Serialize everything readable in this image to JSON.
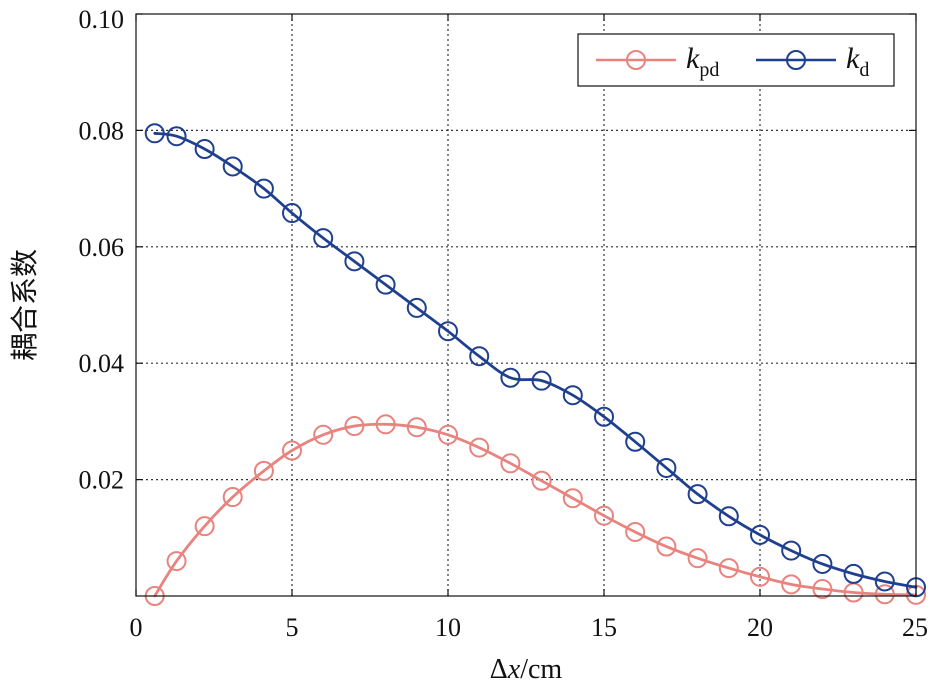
{
  "chart_data": {
    "type": "line",
    "title": "",
    "xlabel_parts": [
      "Δ",
      "x",
      "/cm"
    ],
    "ylabel": "耦合系数",
    "xlim": [
      0,
      25
    ],
    "ylim": [
      0,
      0.1
    ],
    "xticks": [
      0,
      5,
      10,
      15,
      20,
      25
    ],
    "xtick_labels": [
      "0",
      "5",
      "10",
      "15",
      "20",
      "25"
    ],
    "yticks": [
      0.02,
      0.04,
      0.06,
      0.08,
      0.1
    ],
    "ytick_labels": [
      "0.02",
      "0.04",
      "0.06",
      "0.08",
      "0.10"
    ],
    "grid": true,
    "legend_position": "top-right",
    "x": [
      0.6,
      1.3,
      2.2,
      3.1,
      4.1,
      5.0,
      6.0,
      7.0,
      8.0,
      9.0,
      10.0,
      11.0,
      12.0,
      13.0,
      14.0,
      15.0,
      16.0,
      17.0,
      18.0,
      19.0,
      20.0,
      21.0,
      22.0,
      23.0,
      24.0,
      25.0
    ],
    "series": [
      {
        "name": "k_pd",
        "legend_main": "k",
        "legend_sub": "pd",
        "color": "#e8837e",
        "values": [
          0.0,
          0.006,
          0.012,
          0.017,
          0.0215,
          0.025,
          0.0277,
          0.0292,
          0.0295,
          0.029,
          0.0277,
          0.0255,
          0.0228,
          0.0198,
          0.0168,
          0.0138,
          0.011,
          0.0085,
          0.0065,
          0.0048,
          0.0033,
          0.002,
          0.0012,
          0.0006,
          0.0003,
          0.0002
        ]
      },
      {
        "name": "k_d",
        "legend_main": "k",
        "legend_sub": "d",
        "color": "#1f3f8f",
        "values": [
          0.0795,
          0.079,
          0.0768,
          0.0738,
          0.07,
          0.0658,
          0.0615,
          0.0575,
          0.0535,
          0.0495,
          0.0455,
          0.0412,
          0.0375,
          0.037,
          0.0345,
          0.0308,
          0.0265,
          0.022,
          0.0175,
          0.0137,
          0.0105,
          0.0078,
          0.0055,
          0.0038,
          0.0025,
          0.0015
        ]
      }
    ]
  }
}
